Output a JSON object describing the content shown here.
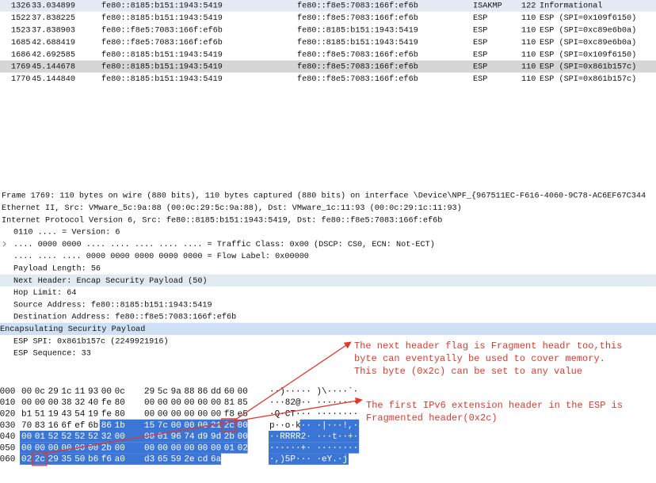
{
  "packets": {
    "rows": [
      [
        "1326",
        "33.034899",
        "fe80::8185:b151:1943:5419",
        "fe80::f8e5:7083:166f:ef6b",
        "ISAKMP",
        "122",
        "Informational"
      ],
      [
        "1522",
        "37.838225",
        "fe80::8185:b151:1943:5419",
        "fe80::f8e5:7083:166f:ef6b",
        "ESP",
        "110",
        "ESP (SPI=0x109f6150)"
      ],
      [
        "1523",
        "37.838903",
        "fe80::f8e5:7083:166f:ef6b",
        "fe80::8185:b151:1943:5419",
        "ESP",
        "110",
        "ESP (SPI=0xc89e6b0a)"
      ],
      [
        "1685",
        "42.688419",
        "fe80::f8e5:7083:166f:ef6b",
        "fe80::8185:b151:1943:5419",
        "ESP",
        "110",
        "ESP (SPI=0xc89e6b0a)"
      ],
      [
        "1686",
        "42.692585",
        "fe80::8185:b151:1943:5419",
        "fe80::f8e5:7083:166f:ef6b",
        "ESP",
        "110",
        "ESP (SPI=0x109f6150)"
      ],
      [
        "1769",
        "45.144678",
        "fe80::8185:b151:1943:5419",
        "fe80::f8e5:7083:166f:ef6b",
        "ESP",
        "110",
        "ESP (SPI=0x861b157c)"
      ],
      [
        "1770",
        "45.144840",
        "fe80::8185:b151:1943:5419",
        "fe80::f8e5:7083:166f:ef6b",
        "ESP",
        "110",
        "ESP (SPI=0x861b157c)"
      ]
    ]
  },
  "details": {
    "lines": [
      "Frame 1769: 110 bytes on wire (880 bits), 110 bytes captured (880 bits) on interface \\Device\\NPF_{967511EC-F616-4060-9C78-AC6EF67C344",
      "Ethernet II, Src: VMware_5c:9a:88 (00:0c:29:5c:9a:88), Dst: VMware_1c:11:93 (00:0c:29:1c:11:93)",
      "Internet Protocol Version 6, Src: fe80::8185:b151:1943:5419, Dst: fe80::f8e5:7083:166f:ef6b",
      "0110 .... = Version: 6",
      ".... 0000 0000 .... .... .... .... .... = Traffic Class: 0x00 (DSCP: CS0, ECN: Not-ECT)",
      ".... .... .... 0000 0000 0000 0000 0000 = Flow Label: 0x00000",
      "Payload Length: 56",
      "Next Header: Encap Security Payload (50)",
      "Hop Limit: 64",
      "Source Address: fe80::8185:b151:1943:5419",
      "Destination Address: fe80::f8e5:7083:166f:ef6b",
      "Encapsulating Security Payload",
      "ESP SPI: 0x861b157c (2249921916)",
      "ESP Sequence: 33"
    ]
  },
  "hex": {
    "rows": [
      {
        "offset": "0000",
        "bytes": [
          "00",
          "0c",
          "29",
          "1c",
          "11",
          "93",
          "00",
          "0c",
          "29",
          "5c",
          "9a",
          "88",
          "86",
          "dd",
          "60",
          "00"
        ],
        "ascii": [
          "··)····· )\\····`·"
        ]
      },
      {
        "offset": "0010",
        "bytes": [
          "00",
          "00",
          "00",
          "38",
          "32",
          "40",
          "fe",
          "80",
          "00",
          "00",
          "00",
          "00",
          "00",
          "00",
          "81",
          "85"
        ],
        "ascii": [
          "···82@·· ········"
        ]
      },
      {
        "offset": "0020",
        "bytes": [
          "b1",
          "51",
          "19",
          "43",
          "54",
          "19",
          "fe",
          "80",
          "00",
          "00",
          "00",
          "00",
          "00",
          "00",
          "f8",
          "e5"
        ],
        "ascii": [
          "·Q·CT··· ········"
        ]
      },
      {
        "offset": "0030",
        "bytes": [
          "70",
          "83",
          "16",
          "6f",
          "ef",
          "6b",
          "86",
          "1b",
          "15",
          "7c",
          "00",
          "00",
          "00",
          "21",
          "2c",
          "00"
        ],
        "ascii": [
          "p··o·k",
          "·· ·|···!,·"
        ]
      },
      {
        "offset": "0040",
        "bytes": [
          "00",
          "01",
          "52",
          "52",
          "52",
          "52",
          "32",
          "00",
          "00",
          "01",
          "96",
          "74",
          "d9",
          "9d",
          "2b",
          "00"
        ],
        "ascii": [
          "··RRRR2· ···t··+·"
        ]
      },
      {
        "offset": "0050",
        "bytes": [
          "00",
          "00",
          "00",
          "00",
          "00",
          "00",
          "2b",
          "00",
          "00",
          "00",
          "00",
          "00",
          "00",
          "00",
          "01",
          "02"
        ],
        "ascii": [
          "······+· ········"
        ]
      },
      {
        "offset": "0060",
        "bytes": [
          "02",
          "2c",
          "29",
          "35",
          "50",
          "b6",
          "f6",
          "a0",
          "d3",
          "65",
          "59",
          "2e",
          "cd",
          "6a"
        ],
        "ascii": [
          "·,)5P··· ·eY.·j"
        ]
      }
    ]
  },
  "annotations": [
    {
      "lines": [
        "The next header flag is Fragment headr too,this",
        "byte can eventyally be used to cover memory.",
        "This byte (0x2c) can be set to any value"
      ]
    },
    {
      "lines": [
        "The first IPv6 extension header in the ESP is",
        "Fragmented header(0x2c)"
      ]
    }
  ]
}
